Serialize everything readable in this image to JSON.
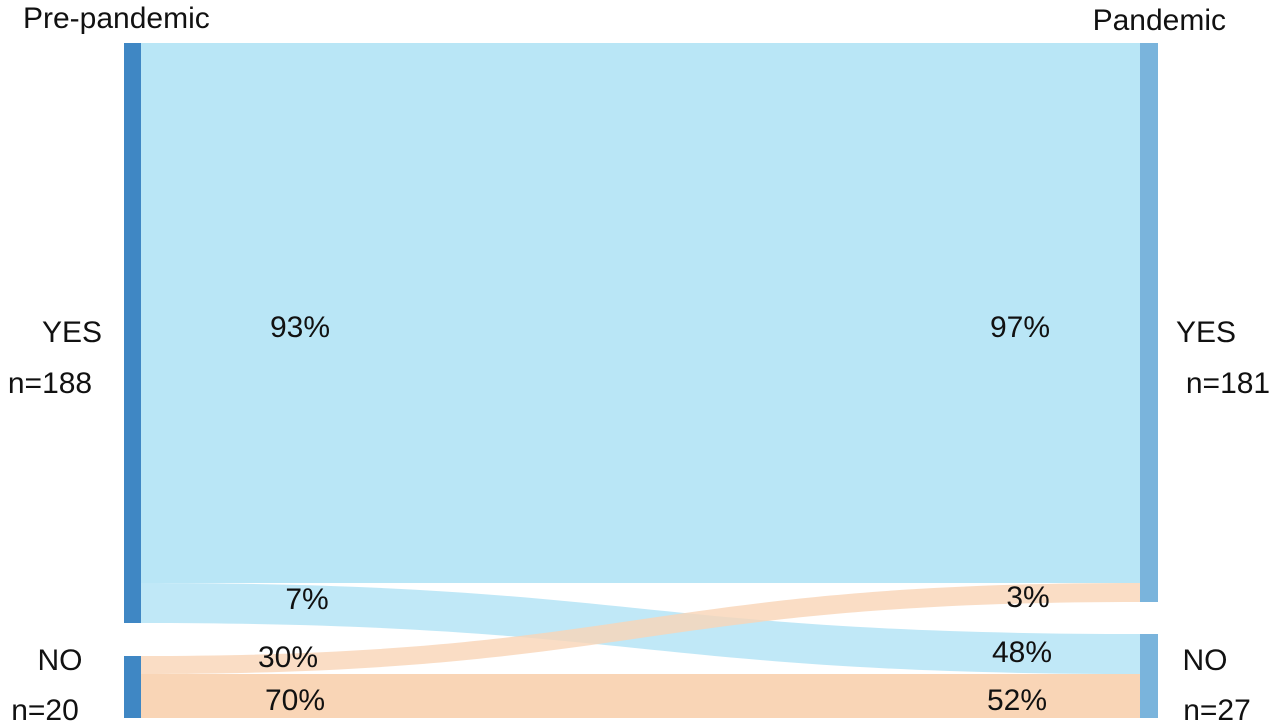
{
  "columns": {
    "left_title": "Pre-pandemic",
    "right_title": "Pandemic"
  },
  "nodes": {
    "left_yes": {
      "label": "YES",
      "count": "n=188",
      "n": 188
    },
    "left_no": {
      "label": "NO",
      "count": "n=20",
      "n": 20
    },
    "right_yes": {
      "label": "YES",
      "count": "n=181",
      "n": 181
    },
    "right_no": {
      "label": "NO",
      "count": "n=27",
      "n": 27
    }
  },
  "flows": {
    "yes_to_yes": {
      "left_pct": "93%",
      "right_pct": "97%"
    },
    "yes_to_no": {
      "left_pct": "7%",
      "right_pct": "48%"
    },
    "no_to_yes": {
      "left_pct": "30%",
      "right_pct": "3%"
    },
    "no_to_no": {
      "left_pct": "70%",
      "right_pct": "52%"
    }
  },
  "colors": {
    "left_node": "#3f87c4",
    "right_node": "#7ab4dc",
    "yes_flow": "#b9e6f6",
    "no_flow": "#f9d5b6"
  }
}
